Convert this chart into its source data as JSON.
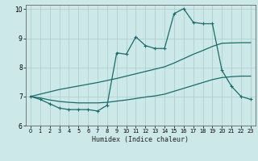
{
  "xlabel": "Humidex (Indice chaleur)",
  "bg_color": "#cce8e8",
  "grid_color": "#aacccc",
  "line_color": "#1a6b6b",
  "xlim": [
    -0.5,
    23.5
  ],
  "ylim": [
    6,
    10.15
  ],
  "yticks": [
    6,
    7,
    8,
    9,
    10
  ],
  "xticks": [
    0,
    1,
    2,
    3,
    4,
    5,
    6,
    7,
    8,
    9,
    10,
    11,
    12,
    13,
    14,
    15,
    16,
    17,
    18,
    19,
    20,
    21,
    22,
    23
  ],
  "x": [
    0,
    1,
    2,
    3,
    4,
    5,
    6,
    7,
    8,
    9,
    10,
    11,
    12,
    13,
    14,
    15,
    16,
    17,
    18,
    19,
    20,
    21,
    22,
    23
  ],
  "y_main": [
    7.0,
    6.9,
    6.75,
    6.6,
    6.55,
    6.55,
    6.55,
    6.5,
    6.7,
    8.5,
    8.45,
    9.05,
    8.75,
    8.65,
    8.65,
    9.85,
    10.02,
    9.55,
    9.5,
    9.5,
    7.9,
    7.35,
    7.0,
    6.9
  ],
  "y_upper": [
    7.0,
    7.08,
    7.16,
    7.24,
    7.3,
    7.36,
    7.42,
    7.48,
    7.55,
    7.62,
    7.7,
    7.78,
    7.86,
    7.94,
    8.02,
    8.15,
    8.3,
    8.45,
    8.58,
    8.72,
    8.83,
    8.84,
    8.85,
    8.85
  ],
  "y_lower": [
    7.0,
    6.95,
    6.88,
    6.83,
    6.8,
    6.78,
    6.78,
    6.78,
    6.8,
    6.84,
    6.88,
    6.93,
    6.98,
    7.02,
    7.08,
    7.18,
    7.28,
    7.38,
    7.48,
    7.58,
    7.65,
    7.68,
    7.7,
    7.7
  ]
}
